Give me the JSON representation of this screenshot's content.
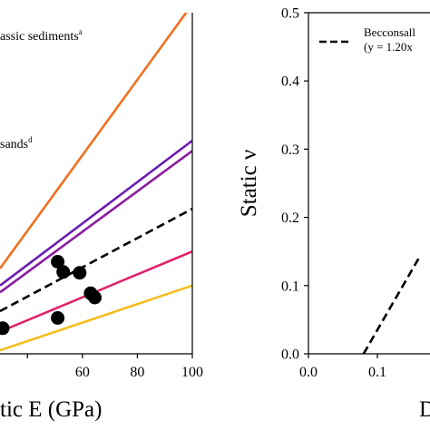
{
  "chart_data": [
    {
      "type": "line",
      "xlabel": "tic E (GPa)",
      "ylabel": "",
      "xlim": [
        30,
        100
      ],
      "ylim": [
        0,
        20
      ],
      "xticks": [
        "60",
        "80",
        "100"
      ],
      "yticks": [],
      "grid": false,
      "annotations": [
        {
          "text": "assic sediments",
          "sup": "a"
        },
        {
          "text": "sands",
          "sup": "d"
        }
      ],
      "series": [
        {
          "color": "#f07020",
          "style": "solid",
          "x": [
            30,
            100
          ],
          "y": [
            5.0,
            20.5
          ]
        },
        {
          "color": "#6a1fb0",
          "style": "solid",
          "x": [
            30,
            100
          ],
          "y": [
            4.0,
            12.5
          ]
        },
        {
          "color": "#8a1ca0",
          "style": "solid",
          "x": [
            30,
            100
          ],
          "y": [
            3.6,
            11.9
          ]
        },
        {
          "color": "#000000",
          "style": "dashed",
          "x": [
            30,
            100
          ],
          "y": [
            2.5,
            8.5
          ]
        },
        {
          "color": "#e0206a",
          "style": "solid",
          "x": [
            30,
            100
          ],
          "y": [
            1.3,
            6.0
          ]
        },
        {
          "color": "#f5bd1f",
          "style": "solid",
          "x": [
            30,
            100
          ],
          "y": [
            0.2,
            4.0
          ]
        }
      ],
      "points": {
        "color": "#000000",
        "x": [
          51,
          53,
          59,
          63,
          64.5,
          51,
          31
        ],
        "y": [
          5.4,
          4.8,
          4.75,
          3.55,
          3.3,
          2.1,
          1.5
        ]
      }
    },
    {
      "type": "line",
      "xlabel": "D",
      "ylabel": "Static ν",
      "xlim": [
        0,
        0.16
      ],
      "ylim": [
        0,
        0.5
      ],
      "xticks": [
        "0.0",
        "0.1"
      ],
      "yticks": [
        "0.0",
        "0.1",
        "0.2",
        "0.3",
        "0.4",
        "0.5"
      ],
      "grid": false,
      "legend": {
        "placement": "top-left",
        "label": "Becconsall",
        "sublabel": "(y = 1.20x"
      },
      "series": [
        {
          "name": "Becconsall",
          "color": "#000000",
          "style": "dashed",
          "x": [
            0.08,
            0.16
          ],
          "y": [
            0.0,
            0.14
          ]
        }
      ]
    }
  ]
}
